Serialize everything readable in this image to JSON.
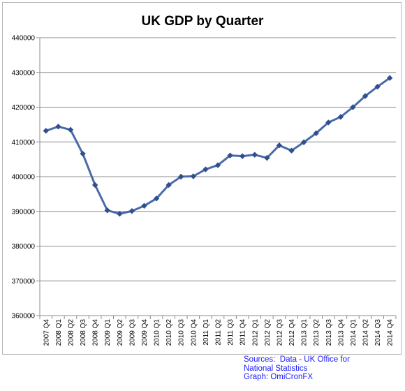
{
  "chart_data": {
    "type": "line",
    "title": "UK GDP by Quarter",
    "xlabel": "",
    "ylabel": "",
    "ylim": [
      360000,
      440000
    ],
    "yticks": [
      "360000",
      "370000",
      "380000",
      "390000",
      "400000",
      "410000",
      "420000",
      "430000",
      "440000"
    ],
    "grid": true,
    "legend": "none",
    "series_color": "#4a6ba8",
    "categories": [
      "2007 Q4",
      "2008 Q1",
      "2008 Q2",
      "2008 Q3",
      "2008 Q4",
      "2009 Q1",
      "2009 Q2",
      "2009 Q3",
      "2009 Q4",
      "2010 Q1",
      "2010 Q2",
      "2010 Q3",
      "2010 Q4",
      "2011 Q1",
      "2011 Q2",
      "2011 Q3",
      "2011 Q4",
      "2012 Q1",
      "2012 Q2",
      "2012 Q3",
      "2012 Q4",
      "2013 Q1",
      "2013 Q2",
      "2013 Q3",
      "2013 Q4",
      "2014 Q1",
      "2014 Q2",
      "2014 Q3",
      "2014 Q4"
    ],
    "values": [
      413200,
      414400,
      413500,
      406600,
      397600,
      390300,
      389300,
      390100,
      391600,
      393700,
      397600,
      400000,
      400100,
      402100,
      403300,
      406100,
      405900,
      406300,
      405400,
      409000,
      407500,
      409900,
      412500,
      415600,
      417200,
      420000,
      423200,
      425900,
      428400
    ]
  },
  "sources": {
    "line1": "Sources:  Data - UK Office for",
    "line2": "National Statistics",
    "line3": "Graph: OmiCronFX"
  }
}
